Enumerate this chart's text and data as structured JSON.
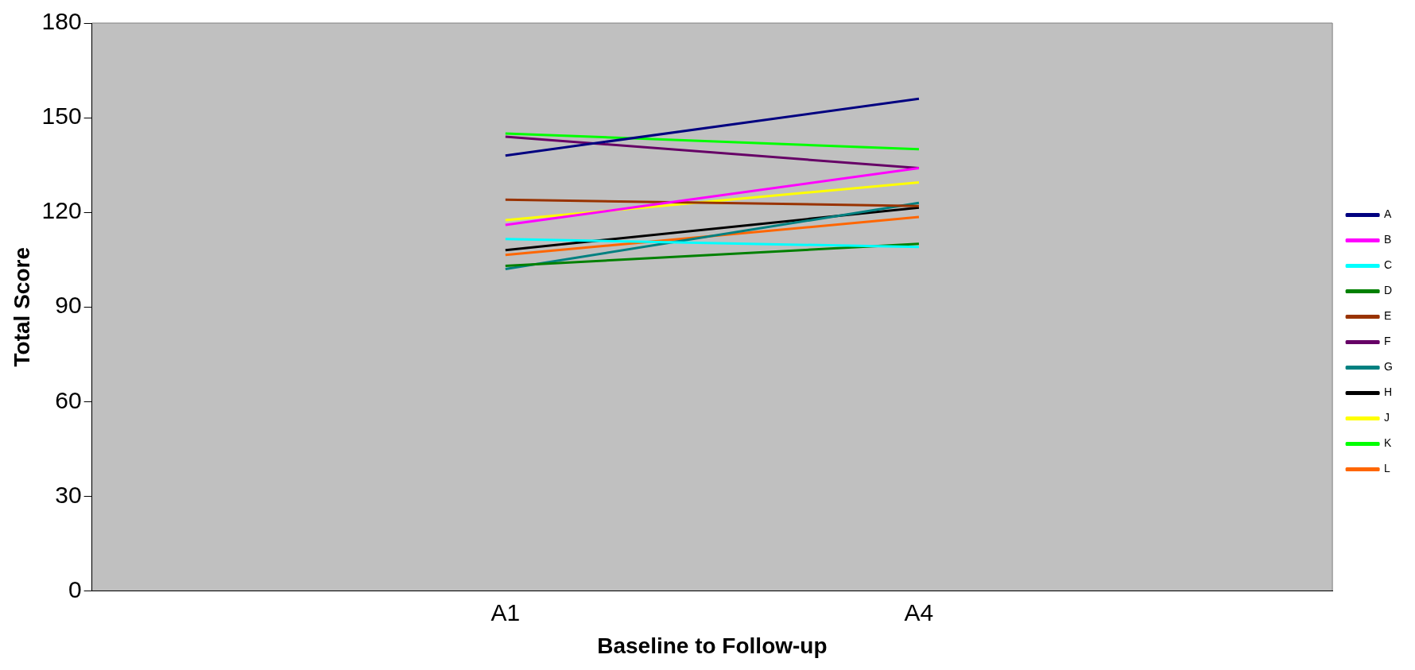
{
  "chart_data": {
    "type": "line",
    "xlabel": "Baseline to Follow-up",
    "ylabel": "Total Score",
    "categories": [
      "A1",
      "A4"
    ],
    "ylim": [
      0,
      180
    ],
    "yticks": [
      0,
      30,
      60,
      90,
      120,
      150,
      180
    ],
    "grid": false,
    "legend": "right",
    "marker": "none",
    "series": [
      {
        "name": "A",
        "color": "#000080",
        "values": [
          138,
          156
        ]
      },
      {
        "name": "B",
        "color": "#ff00ff",
        "values": [
          116,
          134
        ]
      },
      {
        "name": "C",
        "color": "#00ffff",
        "values": [
          111.5,
          109
        ]
      },
      {
        "name": "D",
        "color": "#008000",
        "values": [
          103,
          110
        ]
      },
      {
        "name": "E",
        "color": "#993300",
        "values": [
          124,
          122
        ]
      },
      {
        "name": "F",
        "color": "#660066",
        "values": [
          144,
          134
        ]
      },
      {
        "name": "G",
        "color": "#008080",
        "values": [
          102,
          123
        ]
      },
      {
        "name": "H",
        "color": "#000000",
        "values": [
          108,
          121.5
        ]
      },
      {
        "name": "J",
        "color": "#ffff00",
        "values": [
          117.5,
          129.5
        ]
      },
      {
        "name": "K",
        "color": "#00ff00",
        "values": [
          145,
          140
        ]
      },
      {
        "name": "L",
        "color": "#ff6600",
        "values": [
          106.5,
          118.5
        ]
      }
    ]
  }
}
